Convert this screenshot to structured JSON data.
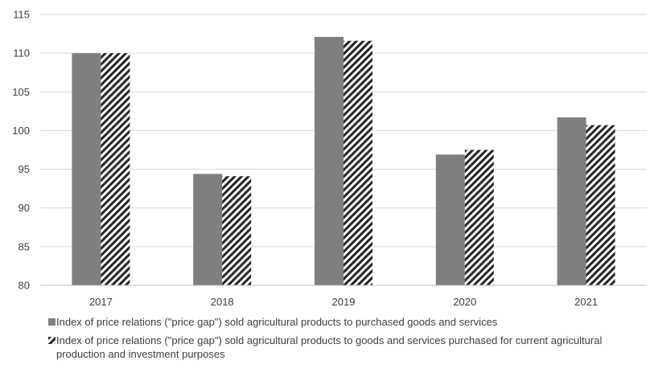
{
  "chart_data": {
    "type": "bar",
    "categories": [
      "2017",
      "2018",
      "2019",
      "2020",
      "2021"
    ],
    "series": [
      {
        "name": "Index of price relations (\"price gap\") sold agricultural products to purchased goods and services",
        "values": [
          110.0,
          94.4,
          112.1,
          96.9,
          101.7
        ],
        "color": "#7f7f7f",
        "pattern": "solid"
      },
      {
        "name": "Index of price relations (\"price gap\") sold agricultural products to goods and services purchased for current agricultural production and investment purposes",
        "values": [
          110.0,
          94.1,
          111.6,
          97.5,
          100.7
        ],
        "color": "#262626",
        "pattern": "diagonal-hatch"
      }
    ],
    "yticks": [
      80,
      85,
      90,
      95,
      100,
      105,
      110,
      115
    ],
    "ylim": [
      80,
      115
    ],
    "grid": true,
    "legend_position": "bottom",
    "title": "",
    "xlabel": "",
    "ylabel": ""
  }
}
